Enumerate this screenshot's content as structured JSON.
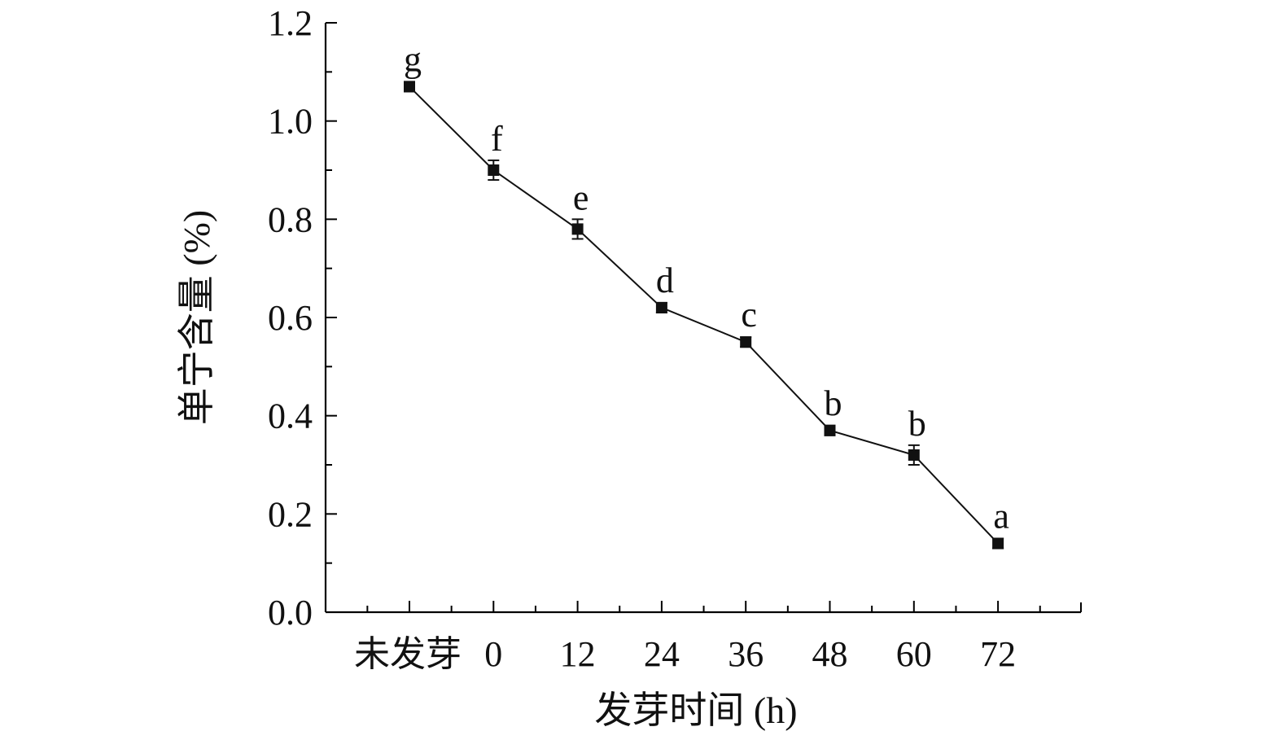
{
  "chart_data": {
    "type": "line",
    "xlabel": "发芽时间 (h)",
    "ylabel": "单宁含量 (%)",
    "categories": [
      "未发芽",
      "0",
      "12",
      "24",
      "36",
      "48",
      "60",
      "72"
    ],
    "ylim": [
      0,
      1.2
    ],
    "yticks": [
      "0.0",
      "0.2",
      "0.4",
      "0.6",
      "0.8",
      "1.0",
      "1.2"
    ],
    "grid": false,
    "series": [
      {
        "values": [
          1.07,
          0.9,
          0.78,
          0.62,
          0.55,
          0.37,
          0.32,
          0.14
        ],
        "errors": [
          0.01,
          0.02,
          0.02,
          0.01,
          0.01,
          0.01,
          0.02,
          0.01
        ],
        "labels": [
          "g",
          "f",
          "e",
          "d",
          "c",
          "b",
          "b",
          "a"
        ],
        "marker": "square",
        "color": "#111111"
      }
    ]
  }
}
